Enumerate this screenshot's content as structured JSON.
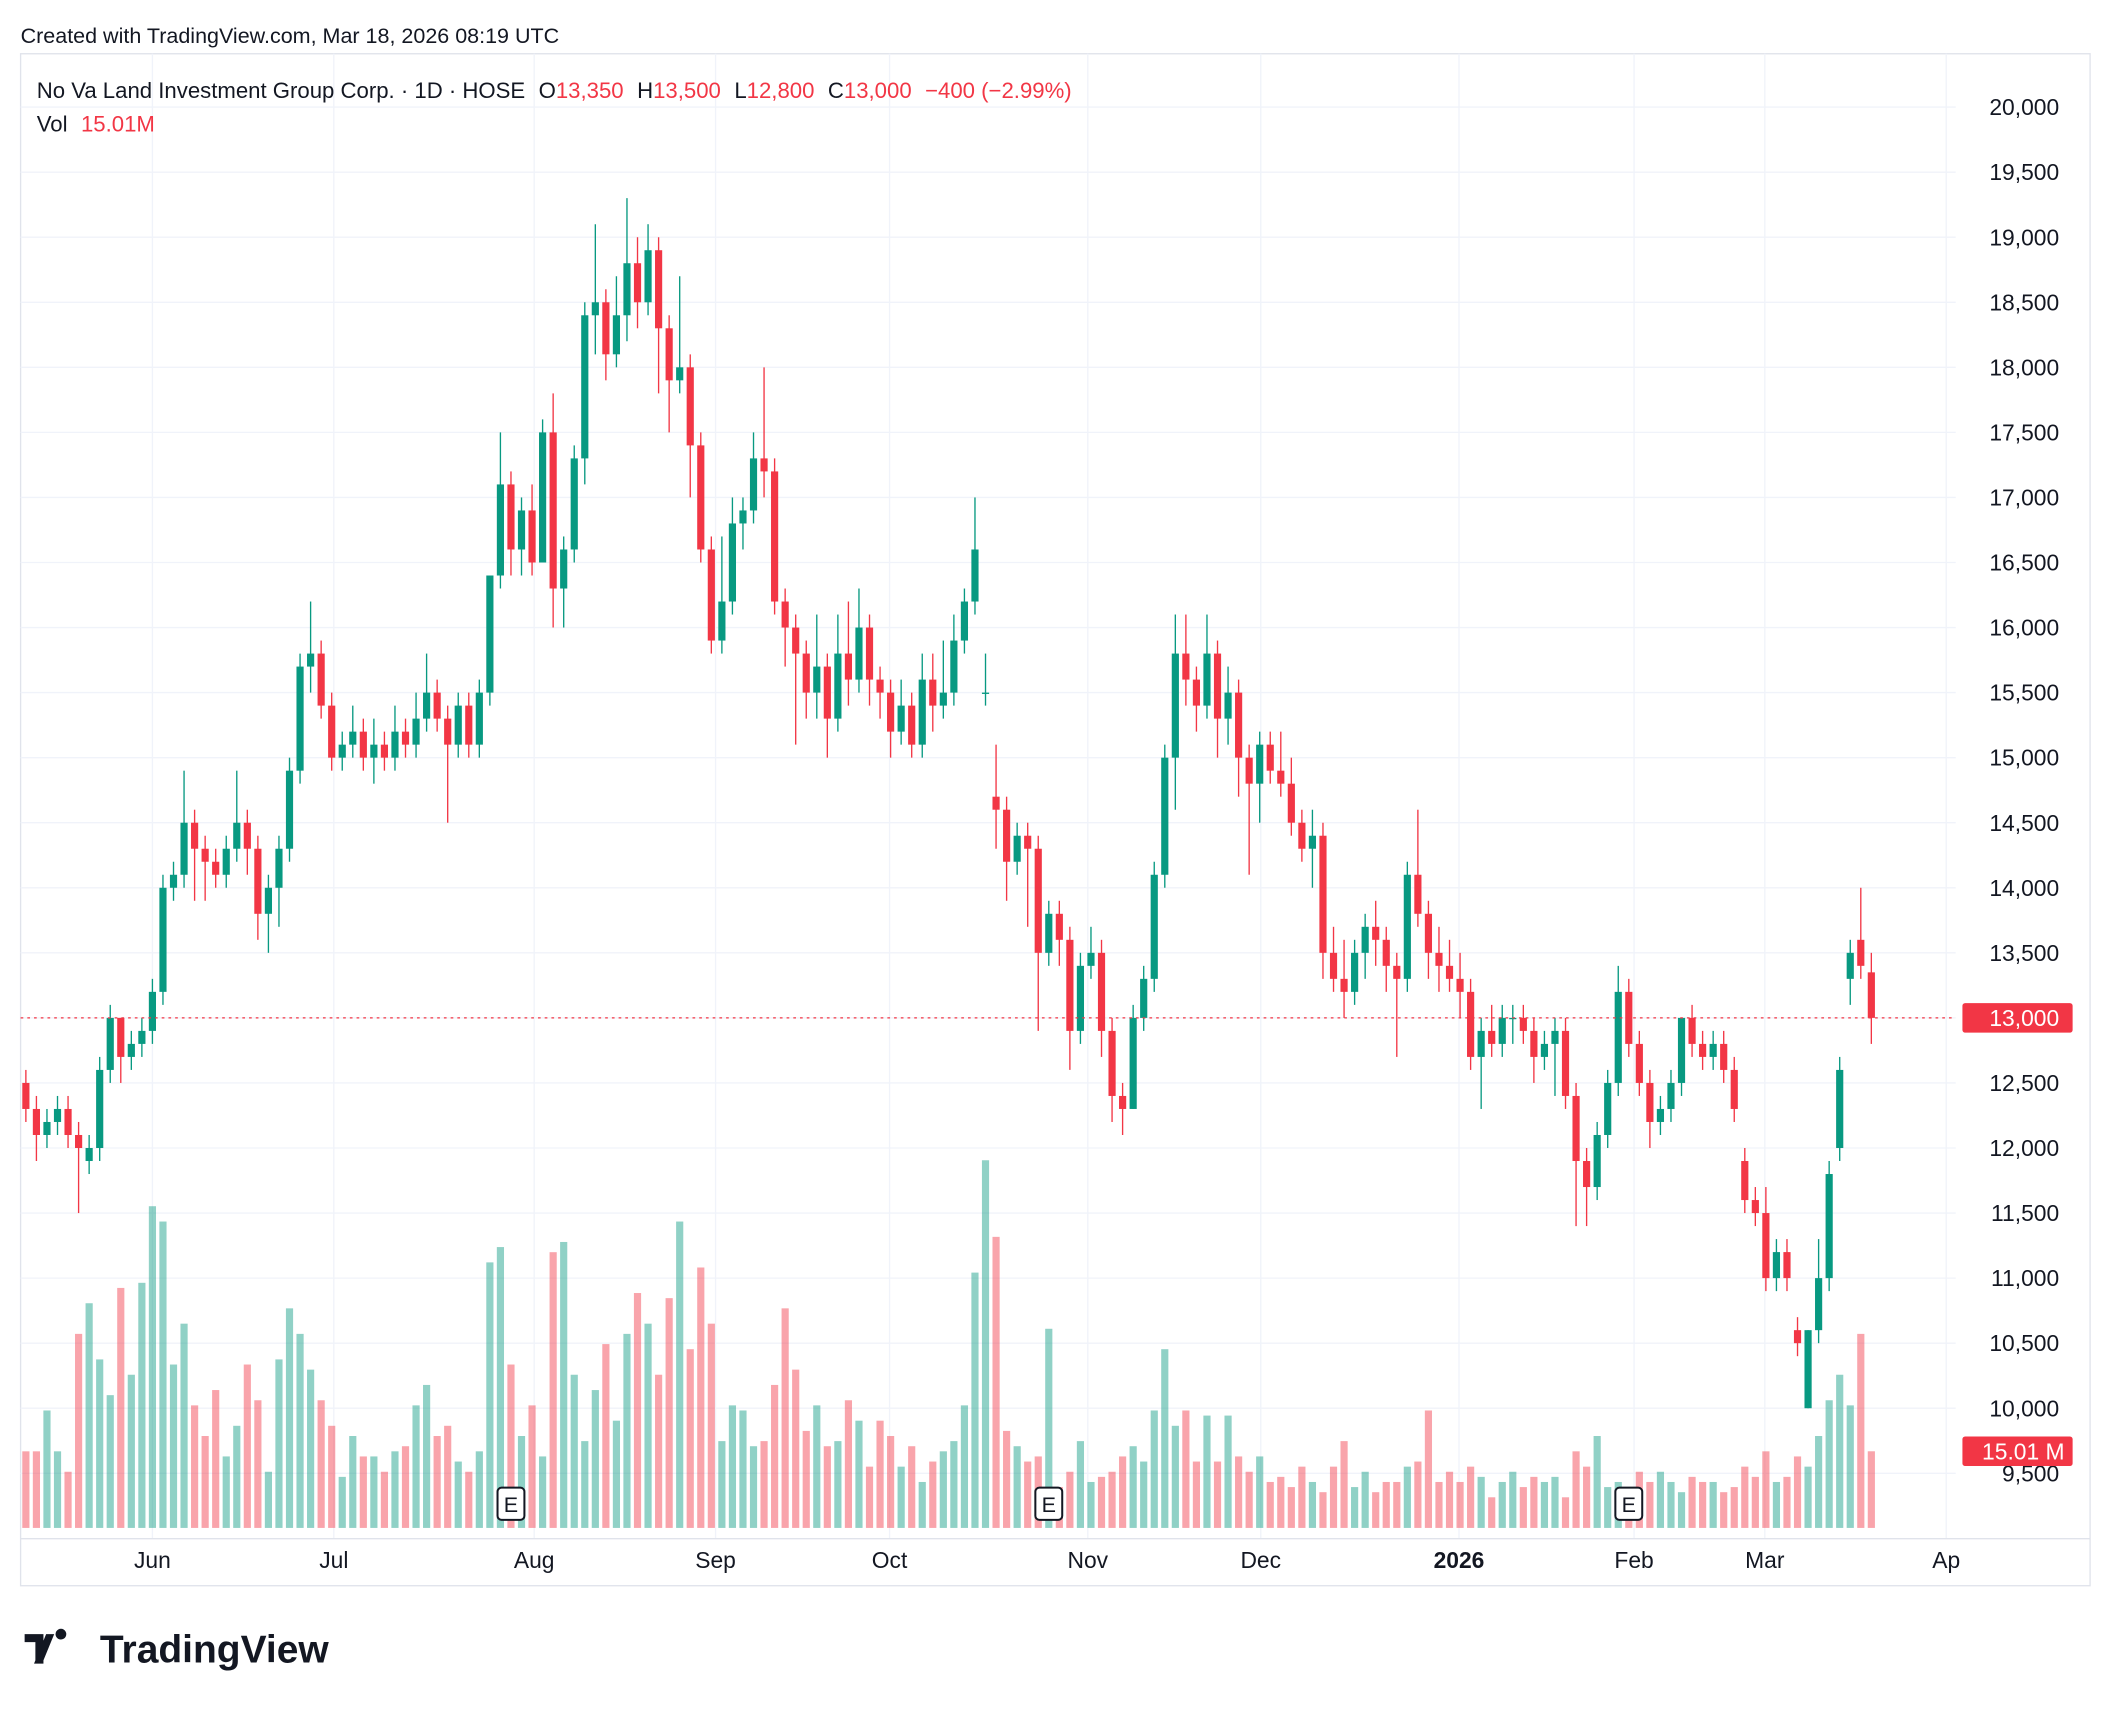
{
  "chart_data": {
    "type": "candlestick",
    "watermark": "Created with TradingView.com, Mar 18, 2026 08:19 UTC",
    "logo": "TradingView",
    "title": "No Va Land Investment Group Corp. · 1D · HOSE",
    "ohlc_header": [
      {
        "key": "O",
        "value_label": "13,350"
      },
      {
        "key": "H",
        "value_label": "13,500"
      },
      {
        "key": "L",
        "value_label": "12,800"
      },
      {
        "key": "C",
        "value_label": "13,000"
      }
    ],
    "change_label": "−400 (−2.99%)",
    "volume_header": {
      "label": "Vol",
      "value_label": "15.01M"
    },
    "volume_badge": "15.01 M",
    "last_price_label": "13,000",
    "up_color": "#089981",
    "down_color": "#f23645",
    "grid": true,
    "xlim": [
      -0.5,
      183
    ],
    "ylim": [
      9080,
      20410
    ],
    "yticks": [
      {
        "value": 9500,
        "label": "9,500"
      },
      {
        "value": 10000,
        "label": "10,000"
      },
      {
        "value": 10500,
        "label": "10,500"
      },
      {
        "value": 11000,
        "label": "11,000"
      },
      {
        "value": 11500,
        "label": "11,500"
      },
      {
        "value": 12000,
        "label": "12,000"
      },
      {
        "value": 12500,
        "label": "12,500"
      },
      {
        "value": 13000,
        "label": "13,000"
      },
      {
        "value": 13500,
        "label": "13,500"
      },
      {
        "value": 14000,
        "label": "14,000"
      },
      {
        "value": 14500,
        "label": "14,500"
      },
      {
        "value": 15000,
        "label": "15,000"
      },
      {
        "value": 15500,
        "label": "15,500"
      },
      {
        "value": 16000,
        "label": "16,000"
      },
      {
        "value": 16500,
        "label": "16,500"
      },
      {
        "value": 17000,
        "label": "17,000"
      },
      {
        "value": 17500,
        "label": "17,500"
      },
      {
        "value": 18000,
        "label": "18,000"
      },
      {
        "value": 18500,
        "label": "18,500"
      },
      {
        "value": 19000,
        "label": "19,000"
      },
      {
        "value": 19500,
        "label": "19,500"
      },
      {
        "value": 20000,
        "label": "20,000"
      }
    ],
    "xticks": [
      {
        "value": 12,
        "label": "Jun"
      },
      {
        "value": 29.2,
        "label": "Jul"
      },
      {
        "value": 48.2,
        "label": "Aug"
      },
      {
        "value": 65.4,
        "label": "Sep"
      },
      {
        "value": 81.9,
        "label": "Oct"
      },
      {
        "value": 100.7,
        "label": "Nov"
      },
      {
        "value": 117.1,
        "label": "Dec"
      },
      {
        "value": 135.9,
        "label": "2026",
        "bold": true
      },
      {
        "value": 152.5,
        "label": "Feb"
      },
      {
        "value": 164.9,
        "label": "Mar"
      },
      {
        "value": 182.1,
        "label": "Ap"
      }
    ],
    "events": [
      {
        "index": 46,
        "label": "E"
      },
      {
        "index": 97,
        "label": "E"
      },
      {
        "index": 152,
        "label": "E"
      }
    ],
    "ohlc": [
      [
        12500,
        12600,
        12200,
        12300
      ],
      [
        12300,
        12400,
        11900,
        12100
      ],
      [
        12100,
        12300,
        12000,
        12200
      ],
      [
        12200,
        12400,
        12100,
        12300
      ],
      [
        12300,
        12400,
        12000,
        12100
      ],
      [
        12100,
        12200,
        11500,
        12000
      ],
      [
        11900,
        12100,
        11800,
        12000
      ],
      [
        12000,
        12700,
        11900,
        12600
      ],
      [
        12600,
        13100,
        12500,
        13000
      ],
      [
        13000,
        13000,
        12500,
        12700
      ],
      [
        12700,
        12900,
        12600,
        12800
      ],
      [
        12800,
        13000,
        12700,
        12900
      ],
      [
        12900,
        13300,
        12800,
        13200
      ],
      [
        13200,
        14100,
        13100,
        14000
      ],
      [
        14000,
        14200,
        13900,
        14100
      ],
      [
        14100,
        14900,
        14000,
        14500
      ],
      [
        14500,
        14600,
        13900,
        14300
      ],
      [
        14300,
        14400,
        13900,
        14200
      ],
      [
        14200,
        14300,
        14000,
        14100
      ],
      [
        14100,
        14400,
        14000,
        14300
      ],
      [
        14300,
        14900,
        14200,
        14500
      ],
      [
        14500,
        14600,
        14100,
        14300
      ],
      [
        14300,
        14400,
        13600,
        13800
      ],
      [
        13800,
        14100,
        13500,
        14000
      ],
      [
        14000,
        14400,
        13700,
        14300
      ],
      [
        14300,
        15000,
        14200,
        14900
      ],
      [
        14900,
        15800,
        14800,
        15700
      ],
      [
        15700,
        16200,
        15500,
        15800
      ],
      [
        15800,
        15900,
        15300,
        15400
      ],
      [
        15400,
        15500,
        14900,
        15000
      ],
      [
        15000,
        15200,
        14900,
        15100
      ],
      [
        15100,
        15400,
        15000,
        15200
      ],
      [
        15200,
        15300,
        14900,
        15000
      ],
      [
        15000,
        15300,
        14800,
        15100
      ],
      [
        15100,
        15200,
        14900,
        15000
      ],
      [
        15000,
        15400,
        14900,
        15200
      ],
      [
        15200,
        15300,
        15000,
        15100
      ],
      [
        15100,
        15500,
        15000,
        15300
      ],
      [
        15300,
        15800,
        15200,
        15500
      ],
      [
        15500,
        15600,
        15200,
        15300
      ],
      [
        15300,
        15400,
        14500,
        15100
      ],
      [
        15100,
        15500,
        15000,
        15400
      ],
      [
        15400,
        15500,
        15000,
        15100
      ],
      [
        15100,
        15600,
        15000,
        15500
      ],
      [
        15500,
        16400,
        15400,
        16400
      ],
      [
        16400,
        17500,
        16300,
        17100
      ],
      [
        17100,
        17200,
        16400,
        16600
      ],
      [
        16600,
        17000,
        16400,
        16900
      ],
      [
        16900,
        17100,
        16400,
        16500
      ],
      [
        16500,
        17600,
        16500,
        17500
      ],
      [
        17500,
        17800,
        16000,
        16300
      ],
      [
        16300,
        16700,
        16000,
        16600
      ],
      [
        16600,
        17400,
        16500,
        17300
      ],
      [
        17300,
        18500,
        17100,
        18400
      ],
      [
        18400,
        19100,
        18100,
        18500
      ],
      [
        18500,
        18600,
        17900,
        18100
      ],
      [
        18100,
        18700,
        18000,
        18400
      ],
      [
        18400,
        19300,
        18200,
        18800
      ],
      [
        18800,
        19000,
        18300,
        18500
      ],
      [
        18500,
        19100,
        18400,
        18900
      ],
      [
        18900,
        19000,
        17800,
        18300
      ],
      [
        18300,
        18400,
        17500,
        17900
      ],
      [
        17900,
        18700,
        17800,
        18000
      ],
      [
        18000,
        18100,
        17000,
        17400
      ],
      [
        17400,
        17500,
        16500,
        16600
      ],
      [
        16600,
        16700,
        15800,
        15900
      ],
      [
        15900,
        16700,
        15800,
        16200
      ],
      [
        16200,
        17000,
        16100,
        16800
      ],
      [
        16800,
        17000,
        16600,
        16900
      ],
      [
        16900,
        17500,
        16800,
        17300
      ],
      [
        17300,
        18000,
        17000,
        17200
      ],
      [
        17200,
        17300,
        16100,
        16200
      ],
      [
        16200,
        16300,
        15700,
        16000
      ],
      [
        16000,
        16100,
        15100,
        15800
      ],
      [
        15800,
        15900,
        15300,
        15500
      ],
      [
        15500,
        16100,
        15300,
        15700
      ],
      [
        15700,
        15800,
        15000,
        15300
      ],
      [
        15300,
        16100,
        15200,
        15800
      ],
      [
        15800,
        16200,
        15400,
        15600
      ],
      [
        15600,
        16300,
        15500,
        16000
      ],
      [
        16000,
        16100,
        15400,
        15600
      ],
      [
        15600,
        15700,
        15300,
        15500
      ],
      [
        15500,
        15600,
        15000,
        15200
      ],
      [
        15200,
        15600,
        15100,
        15400
      ],
      [
        15400,
        15500,
        15000,
        15100
      ],
      [
        15100,
        15800,
        15000,
        15600
      ],
      [
        15600,
        15800,
        15200,
        15400
      ],
      [
        15400,
        15900,
        15300,
        15500
      ],
      [
        15500,
        16100,
        15400,
        15900
      ],
      [
        15900,
        16300,
        15800,
        16200
      ],
      [
        16200,
        17000,
        16100,
        16600
      ],
      [
        15500,
        15800,
        15400,
        15500
      ],
      [
        14700,
        15100,
        14300,
        14600
      ],
      [
        14600,
        14700,
        13900,
        14200
      ],
      [
        14200,
        14500,
        14100,
        14400
      ],
      [
        14400,
        14500,
        13700,
        14300
      ],
      [
        14300,
        14400,
        12900,
        13500
      ],
      [
        13500,
        13900,
        13400,
        13800
      ],
      [
        13800,
        13900,
        13400,
        13600
      ],
      [
        13600,
        13700,
        12600,
        12900
      ],
      [
        12900,
        13500,
        12800,
        13400
      ],
      [
        13400,
        13700,
        13300,
        13500
      ],
      [
        13500,
        13600,
        12700,
        12900
      ],
      [
        12900,
        13000,
        12200,
        12400
      ],
      [
        12400,
        12500,
        12100,
        12300
      ],
      [
        12300,
        13100,
        12300,
        13000
      ],
      [
        13000,
        13400,
        12900,
        13300
      ],
      [
        13300,
        14200,
        13200,
        14100
      ],
      [
        14100,
        15100,
        14000,
        15000
      ],
      [
        15000,
        16100,
        14600,
        15800
      ],
      [
        15800,
        16100,
        15400,
        15600
      ],
      [
        15600,
        15700,
        15200,
        15400
      ],
      [
        15400,
        16100,
        15300,
        15800
      ],
      [
        15800,
        15900,
        15000,
        15300
      ],
      [
        15300,
        15700,
        15100,
        15500
      ],
      [
        15500,
        15600,
        14700,
        15000
      ],
      [
        15000,
        15100,
        14100,
        14800
      ],
      [
        14800,
        15200,
        14500,
        15100
      ],
      [
        15100,
        15200,
        14800,
        14900
      ],
      [
        14900,
        15200,
        14700,
        14800
      ],
      [
        14800,
        15000,
        14400,
        14500
      ],
      [
        14500,
        14600,
        14200,
        14300
      ],
      [
        14300,
        14600,
        14000,
        14400
      ],
      [
        14400,
        14500,
        13300,
        13500
      ],
      [
        13500,
        13700,
        13200,
        13300
      ],
      [
        13300,
        13600,
        13000,
        13200
      ],
      [
        13200,
        13600,
        13100,
        13500
      ],
      [
        13500,
        13800,
        13300,
        13700
      ],
      [
        13700,
        13900,
        13400,
        13600
      ],
      [
        13600,
        13700,
        13200,
        13400
      ],
      [
        13400,
        13500,
        12700,
        13300
      ],
      [
        13300,
        14200,
        13200,
        14100
      ],
      [
        14100,
        14600,
        13700,
        13800
      ],
      [
        13800,
        13900,
        13300,
        13500
      ],
      [
        13500,
        13700,
        13200,
        13400
      ],
      [
        13400,
        13600,
        13200,
        13300
      ],
      [
        13300,
        13500,
        13000,
        13200
      ],
      [
        13200,
        13300,
        12600,
        12700
      ],
      [
        12700,
        13000,
        12300,
        12900
      ],
      [
        12900,
        13100,
        12700,
        12800
      ],
      [
        12800,
        13100,
        12700,
        13000
      ],
      [
        13000,
        13100,
        12800,
        13000
      ],
      [
        13000,
        13100,
        12800,
        12900
      ],
      [
        12900,
        13000,
        12500,
        12700
      ],
      [
        12700,
        12900,
        12600,
        12800
      ],
      [
        12800,
        13000,
        12400,
        12900
      ],
      [
        12900,
        13000,
        12300,
        12400
      ],
      [
        12400,
        12500,
        11400,
        11900
      ],
      [
        11900,
        12000,
        11400,
        11700
      ],
      [
        11700,
        12200,
        11600,
        12100
      ],
      [
        12100,
        12600,
        12000,
        12500
      ],
      [
        12500,
        13400,
        12400,
        13200
      ],
      [
        13200,
        13300,
        12700,
        12800
      ],
      [
        12800,
        12900,
        12400,
        12500
      ],
      [
        12500,
        12600,
        12000,
        12200
      ],
      [
        12200,
        12400,
        12100,
        12300
      ],
      [
        12300,
        12600,
        12200,
        12500
      ],
      [
        12500,
        13000,
        12400,
        13000
      ],
      [
        13000,
        13100,
        12700,
        12800
      ],
      [
        12800,
        12900,
        12600,
        12700
      ],
      [
        12700,
        12900,
        12600,
        12800
      ],
      [
        12800,
        12900,
        12500,
        12600
      ],
      [
        12600,
        12700,
        12200,
        12300
      ],
      [
        11900,
        12000,
        11500,
        11600
      ],
      [
        11600,
        11700,
        11400,
        11500
      ],
      [
        11500,
        11700,
        10900,
        11000
      ],
      [
        11000,
        11300,
        10900,
        11200
      ],
      [
        11200,
        11300,
        10900,
        11000
      ],
      [
        10600,
        10700,
        10400,
        10500
      ],
      [
        10000,
        10600,
        10000,
        10600
      ],
      [
        10600,
        11300,
        10500,
        11000
      ],
      [
        11000,
        11900,
        10900,
        11800
      ],
      [
        12000,
        12700,
        11900,
        12600
      ],
      [
        13300,
        13600,
        13100,
        13500
      ],
      [
        13600,
        14000,
        13300,
        13400
      ],
      [
        13350,
        13500,
        12800,
        13000
      ]
    ],
    "volume": [
      15,
      15,
      23,
      15,
      11,
      38,
      44,
      33,
      26,
      47,
      30,
      48,
      63,
      60,
      32,
      40,
      24,
      18,
      27,
      14,
      20,
      32,
      25,
      11,
      33,
      43,
      38,
      31,
      25,
      20,
      10,
      18,
      14,
      14,
      11,
      15,
      16,
      24,
      28,
      18,
      20,
      13,
      11,
      15,
      52,
      55,
      32,
      18,
      24,
      14,
      54,
      56,
      30,
      17,
      27,
      36,
      21,
      38,
      46,
      40,
      30,
      45,
      60,
      35,
      51,
      40,
      17,
      24,
      23,
      16,
      17,
      28,
      43,
      31,
      19,
      24,
      16,
      17,
      25,
      21,
      12,
      21,
      18,
      12,
      16,
      9,
      13,
      15,
      17,
      24,
      50,
      72,
      57,
      19,
      16,
      13,
      14,
      39,
      8,
      11,
      17,
      9,
      10,
      11,
      14,
      16,
      13,
      23,
      35,
      20,
      23,
      13,
      22,
      13,
      22,
      14,
      11,
      14,
      9,
      10,
      8,
      12,
      9,
      7,
      12,
      17,
      8,
      11,
      7,
      9,
      9,
      12,
      13,
      23,
      9,
      11,
      9,
      12,
      10,
      6,
      9,
      11,
      8,
      10,
      9,
      10,
      6,
      15,
      12,
      18,
      8,
      9,
      8,
      11,
      9,
      11,
      9,
      7,
      10,
      9,
      9,
      7,
      8,
      12,
      10,
      15,
      9,
      10,
      14,
      12,
      18,
      25,
      30,
      24,
      38,
      15.01
    ]
  }
}
